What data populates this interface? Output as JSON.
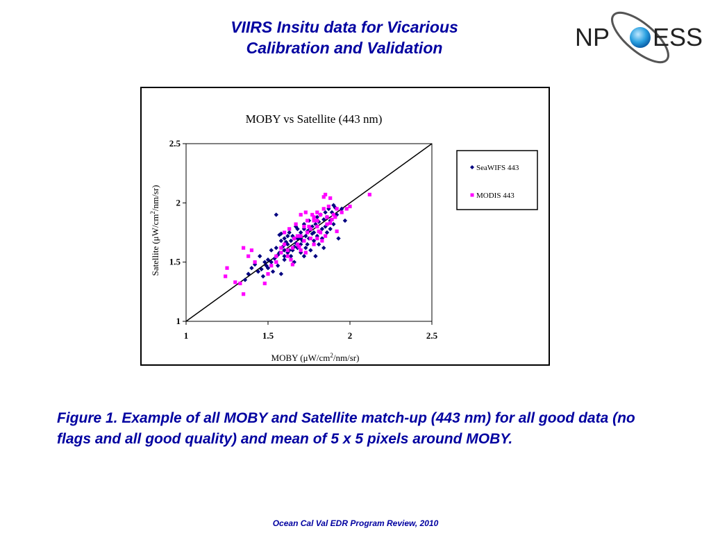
{
  "slide": {
    "title_line1": "VIIRS Insitu data for Vicarious",
    "title_line2": "Calibration and Validation",
    "logo_text_left": "NP",
    "logo_text_right": "ESS",
    "caption": "Figure 1. Example of all MOBY and Satellite match-up (443 nm)  for all good data (no flags and all good quality) and mean of 5 x 5 pixels around MOBY.",
    "footer": "Ocean Cal Val EDR Program Review, 2010"
  },
  "colors": {
    "text_blue": "#0000a0",
    "seawifs": "#000080",
    "modis": "#ff00ff"
  },
  "chart_data": {
    "type": "scatter",
    "title": "MOBY vs Satellite (443 nm)",
    "xlabel_pre": "MOBY (",
    "xlabel_mu": "μ",
    "xlabel_mid": "W/cm",
    "xlabel_sup": "2",
    "xlabel_post": "/nm/sr)",
    "ylabel_pre": "Satellite (",
    "ylabel_mu": "μ",
    "ylabel_mid": "W/cm",
    "ylabel_sup": "2",
    "ylabel_post": "/nm/sr)",
    "xlim": [
      1,
      2.5
    ],
    "ylim": [
      1,
      2.5
    ],
    "xticks": [
      "1",
      "1.5",
      "2",
      "2.5"
    ],
    "yticks": [
      "1",
      "1.5",
      "2",
      "2.5"
    ],
    "grid": false,
    "legend_position": "right",
    "reference_line": [
      [
        1,
        1
      ],
      [
        2.5,
        2.5
      ]
    ],
    "series": [
      {
        "name": "SeaWIFS 443",
        "marker": "diamond",
        "color": "#000080",
        "points": [
          [
            1.42,
            1.48
          ],
          [
            1.45,
            1.55
          ],
          [
            1.48,
            1.5
          ],
          [
            1.5,
            1.52
          ],
          [
            1.52,
            1.6
          ],
          [
            1.55,
            1.62
          ],
          [
            1.55,
            1.9
          ],
          [
            1.57,
            1.73
          ],
          [
            1.58,
            1.68
          ],
          [
            1.6,
            1.7
          ],
          [
            1.6,
            1.55
          ],
          [
            1.62,
            1.65
          ],
          [
            1.63,
            1.75
          ],
          [
            1.65,
            1.72
          ],
          [
            1.65,
            1.6
          ],
          [
            1.67,
            1.8
          ],
          [
            1.68,
            1.7
          ],
          [
            1.7,
            1.75
          ],
          [
            1.7,
            1.65
          ],
          [
            1.72,
            1.78
          ],
          [
            1.73,
            1.62
          ],
          [
            1.75,
            1.85
          ],
          [
            1.75,
            1.7
          ],
          [
            1.77,
            1.8
          ],
          [
            1.78,
            1.75
          ],
          [
            1.8,
            1.88
          ],
          [
            1.8,
            1.72
          ],
          [
            1.82,
            1.9
          ],
          [
            1.83,
            1.78
          ],
          [
            1.85,
            1.92
          ],
          [
            1.85,
            1.8
          ],
          [
            1.87,
            1.95
          ],
          [
            1.88,
            1.85
          ],
          [
            1.9,
            1.98
          ],
          [
            1.92,
            1.9
          ],
          [
            1.93,
            1.7
          ],
          [
            1.95,
            1.95
          ],
          [
            1.97,
            1.85
          ],
          [
            1.4,
            1.45
          ],
          [
            1.38,
            1.4
          ],
          [
            1.36,
            1.35
          ],
          [
            1.44,
            1.42
          ],
          [
            1.47,
            1.38
          ],
          [
            1.5,
            1.45
          ],
          [
            1.52,
            1.5
          ],
          [
            1.53,
            1.42
          ],
          [
            1.56,
            1.47
          ],
          [
            1.58,
            1.4
          ],
          [
            1.6,
            1.52
          ],
          [
            1.62,
            1.58
          ],
          [
            1.64,
            1.55
          ],
          [
            1.66,
            1.5
          ],
          [
            1.68,
            1.62
          ],
          [
            1.7,
            1.58
          ],
          [
            1.72,
            1.55
          ],
          [
            1.74,
            1.65
          ],
          [
            1.76,
            1.6
          ],
          [
            1.78,
            1.68
          ],
          [
            1.79,
            1.55
          ],
          [
            1.81,
            1.65
          ],
          [
            1.83,
            1.7
          ],
          [
            1.84,
            1.62
          ],
          [
            1.86,
            1.75
          ],
          [
            1.57,
            1.58
          ],
          [
            1.59,
            1.63
          ],
          [
            1.61,
            1.67
          ],
          [
            1.63,
            1.6
          ],
          [
            1.67,
            1.66
          ],
          [
            1.69,
            1.72
          ],
          [
            1.71,
            1.68
          ],
          [
            1.73,
            1.72
          ],
          [
            1.77,
            1.74
          ],
          [
            1.79,
            1.82
          ],
          [
            1.81,
            1.84
          ],
          [
            1.84,
            1.86
          ],
          [
            1.86,
            1.88
          ],
          [
            1.89,
            1.92
          ],
          [
            1.91,
            1.96
          ],
          [
            1.88,
            1.78
          ],
          [
            1.9,
            1.82
          ],
          [
            1.54,
            1.53
          ],
          [
            1.56,
            1.56
          ],
          [
            1.64,
            1.68
          ],
          [
            1.66,
            1.63
          ],
          [
            1.74,
            1.76
          ],
          [
            1.76,
            1.79
          ],
          [
            1.49,
            1.47
          ],
          [
            1.46,
            1.44
          ],
          [
            1.62,
            1.72
          ],
          [
            1.68,
            1.78
          ],
          [
            1.72,
            1.82
          ],
          [
            1.66,
            1.7
          ],
          [
            1.58,
            1.74
          ],
          [
            1.6,
            1.6
          ],
          [
            1.7,
            1.7
          ],
          [
            1.75,
            1.77
          ]
        ]
      },
      {
        "name": "MODIS 443",
        "marker": "square",
        "color": "#ff00ff",
        "points": [
          [
            1.25,
            1.45
          ],
          [
            1.24,
            1.38
          ],
          [
            1.3,
            1.33
          ],
          [
            1.33,
            1.32
          ],
          [
            1.35,
            1.23
          ],
          [
            1.35,
            1.62
          ],
          [
            1.38,
            1.55
          ],
          [
            1.4,
            1.6
          ],
          [
            1.42,
            1.5
          ],
          [
            1.48,
            1.32
          ],
          [
            1.5,
            1.4
          ],
          [
            1.52,
            1.47
          ],
          [
            1.55,
            1.55
          ],
          [
            1.58,
            1.58
          ],
          [
            1.6,
            1.65
          ],
          [
            1.62,
            1.6
          ],
          [
            1.64,
            1.52
          ],
          [
            1.65,
            1.48
          ],
          [
            1.66,
            1.7
          ],
          [
            1.68,
            1.65
          ],
          [
            1.7,
            1.72
          ],
          [
            1.7,
            1.9
          ],
          [
            1.72,
            1.68
          ],
          [
            1.73,
            1.92
          ],
          [
            1.74,
            1.75
          ],
          [
            1.75,
            1.8
          ],
          [
            1.76,
            1.7
          ],
          [
            1.78,
            1.85
          ],
          [
            1.78,
            1.88
          ],
          [
            1.8,
            1.8
          ],
          [
            1.8,
            1.92
          ],
          [
            1.82,
            1.75
          ],
          [
            1.82,
            1.9
          ],
          [
            1.84,
            2.05
          ],
          [
            1.84,
            1.95
          ],
          [
            1.85,
            2.07
          ],
          [
            1.86,
            1.88
          ],
          [
            1.87,
            1.97
          ],
          [
            1.88,
            2.04
          ],
          [
            1.88,
            1.83
          ],
          [
            1.9,
            1.9
          ],
          [
            1.92,
            1.95
          ],
          [
            1.92,
            1.76
          ],
          [
            1.95,
            1.92
          ],
          [
            1.98,
            1.95
          ],
          [
            2.0,
            1.97
          ],
          [
            2.12,
            2.07
          ],
          [
            1.6,
            1.75
          ],
          [
            1.62,
            1.55
          ],
          [
            1.65,
            1.62
          ],
          [
            1.68,
            1.72
          ],
          [
            1.72,
            1.8
          ],
          [
            1.74,
            1.85
          ],
          [
            1.76,
            1.78
          ],
          [
            1.78,
            1.65
          ],
          [
            1.8,
            1.7
          ],
          [
            1.83,
            1.68
          ],
          [
            1.85,
            1.72
          ],
          [
            1.7,
            1.6
          ],
          [
            1.58,
            1.62
          ],
          [
            1.63,
            1.78
          ],
          [
            1.77,
            1.9
          ],
          [
            1.8,
            1.85
          ],
          [
            1.86,
            1.82
          ],
          [
            1.55,
            1.5
          ],
          [
            1.67,
            1.82
          ],
          [
            1.69,
            1.63
          ],
          [
            1.73,
            1.58
          ],
          [
            1.81,
            1.76
          ],
          [
            1.89,
            1.86
          ],
          [
            1.91,
            1.88
          ]
        ]
      }
    ]
  }
}
